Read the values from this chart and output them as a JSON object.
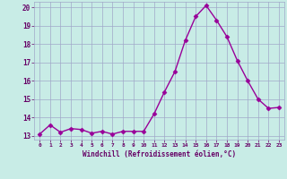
{
  "x": [
    0,
    1,
    2,
    3,
    4,
    5,
    6,
    7,
    8,
    9,
    10,
    11,
    12,
    13,
    14,
    15,
    16,
    17,
    18,
    19,
    20,
    21,
    22,
    23
  ],
  "y": [
    13.1,
    13.6,
    13.2,
    13.4,
    13.35,
    13.15,
    13.25,
    13.1,
    13.25,
    13.25,
    13.25,
    14.2,
    15.4,
    16.5,
    18.2,
    19.5,
    20.1,
    19.3,
    18.4,
    17.1,
    16.0,
    15.0,
    14.5,
    14.55
  ],
  "line_color": "#990099",
  "marker_color": "#990099",
  "bg_color": "#c8ece6",
  "grid_color": "#a0a8c8",
  "xlabel": "Windchill (Refroidissement éolien,°C)",
  "xlabel_color": "#660066",
  "tick_color": "#660066",
  "ylim": [
    12.8,
    20.3
  ],
  "xlim": [
    -0.5,
    23.5
  ],
  "yticks": [
    13,
    14,
    15,
    16,
    17,
    18,
    19,
    20
  ],
  "xticks": [
    0,
    1,
    2,
    3,
    4,
    5,
    6,
    7,
    8,
    9,
    10,
    11,
    12,
    13,
    14,
    15,
    16,
    17,
    18,
    19,
    20,
    21,
    22,
    23
  ]
}
